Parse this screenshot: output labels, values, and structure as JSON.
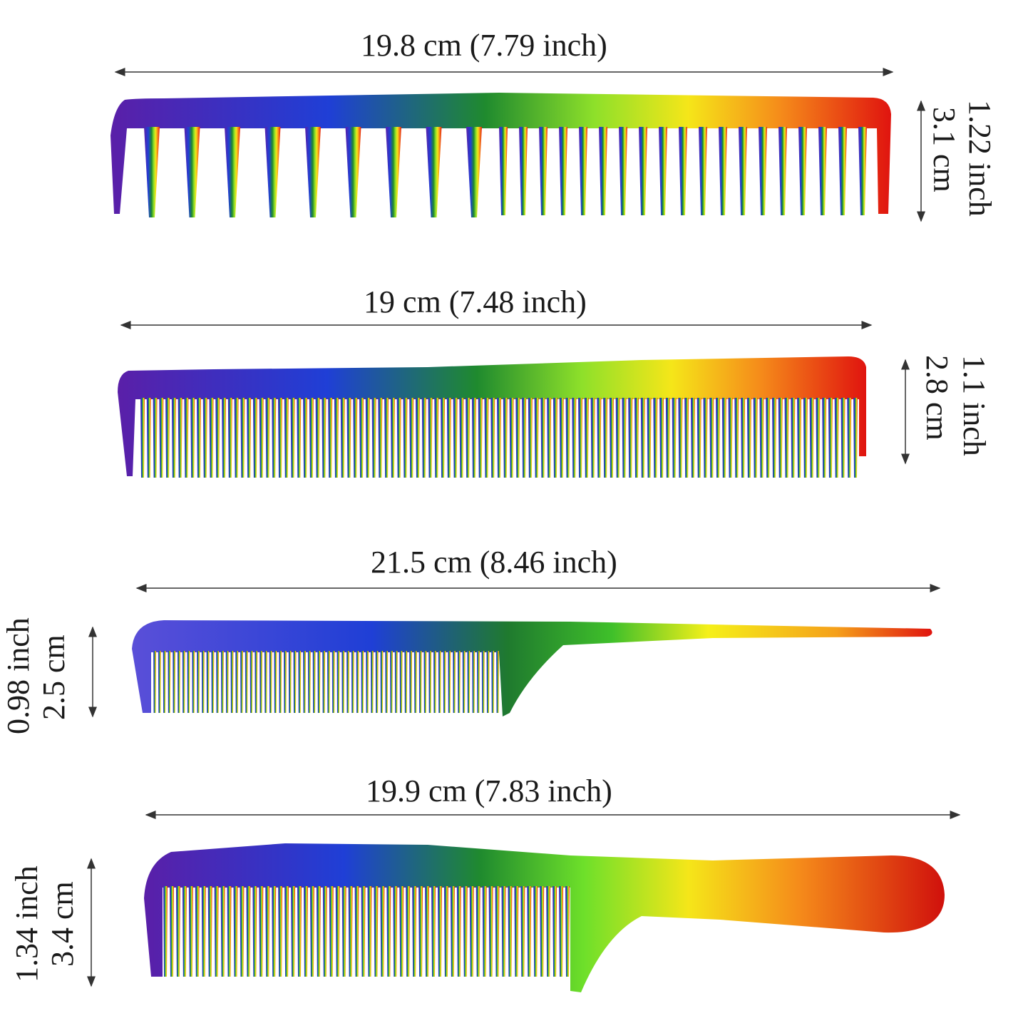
{
  "colors": {
    "purple": "#5a1fa8",
    "blue": "#1f3fd6",
    "green": "#1f8a2e",
    "lime": "#8ee02a",
    "yellow": "#f5e619",
    "orange": "#f58a1a",
    "red": "#e0140f"
  },
  "combs": [
    {
      "name": "wide-tooth-comb",
      "length_label": "19.8 cm (7.79 inch)",
      "height_inch": "1.22 inch",
      "height_cm": "3.1 cm"
    },
    {
      "name": "cutting-comb",
      "length_label": "19 cm (7.48 inch)",
      "height_inch": "1.1 inch",
      "height_cm": "2.8 cm"
    },
    {
      "name": "tail-comb",
      "length_label": "21.5 cm (8.46 inch)",
      "height_inch": "0.98 inch",
      "height_cm": "2.5 cm"
    },
    {
      "name": "handle-comb",
      "length_label": "19.9 cm (7.83 inch)",
      "height_inch": "1.34 inch",
      "height_cm": "3.4 cm"
    }
  ]
}
